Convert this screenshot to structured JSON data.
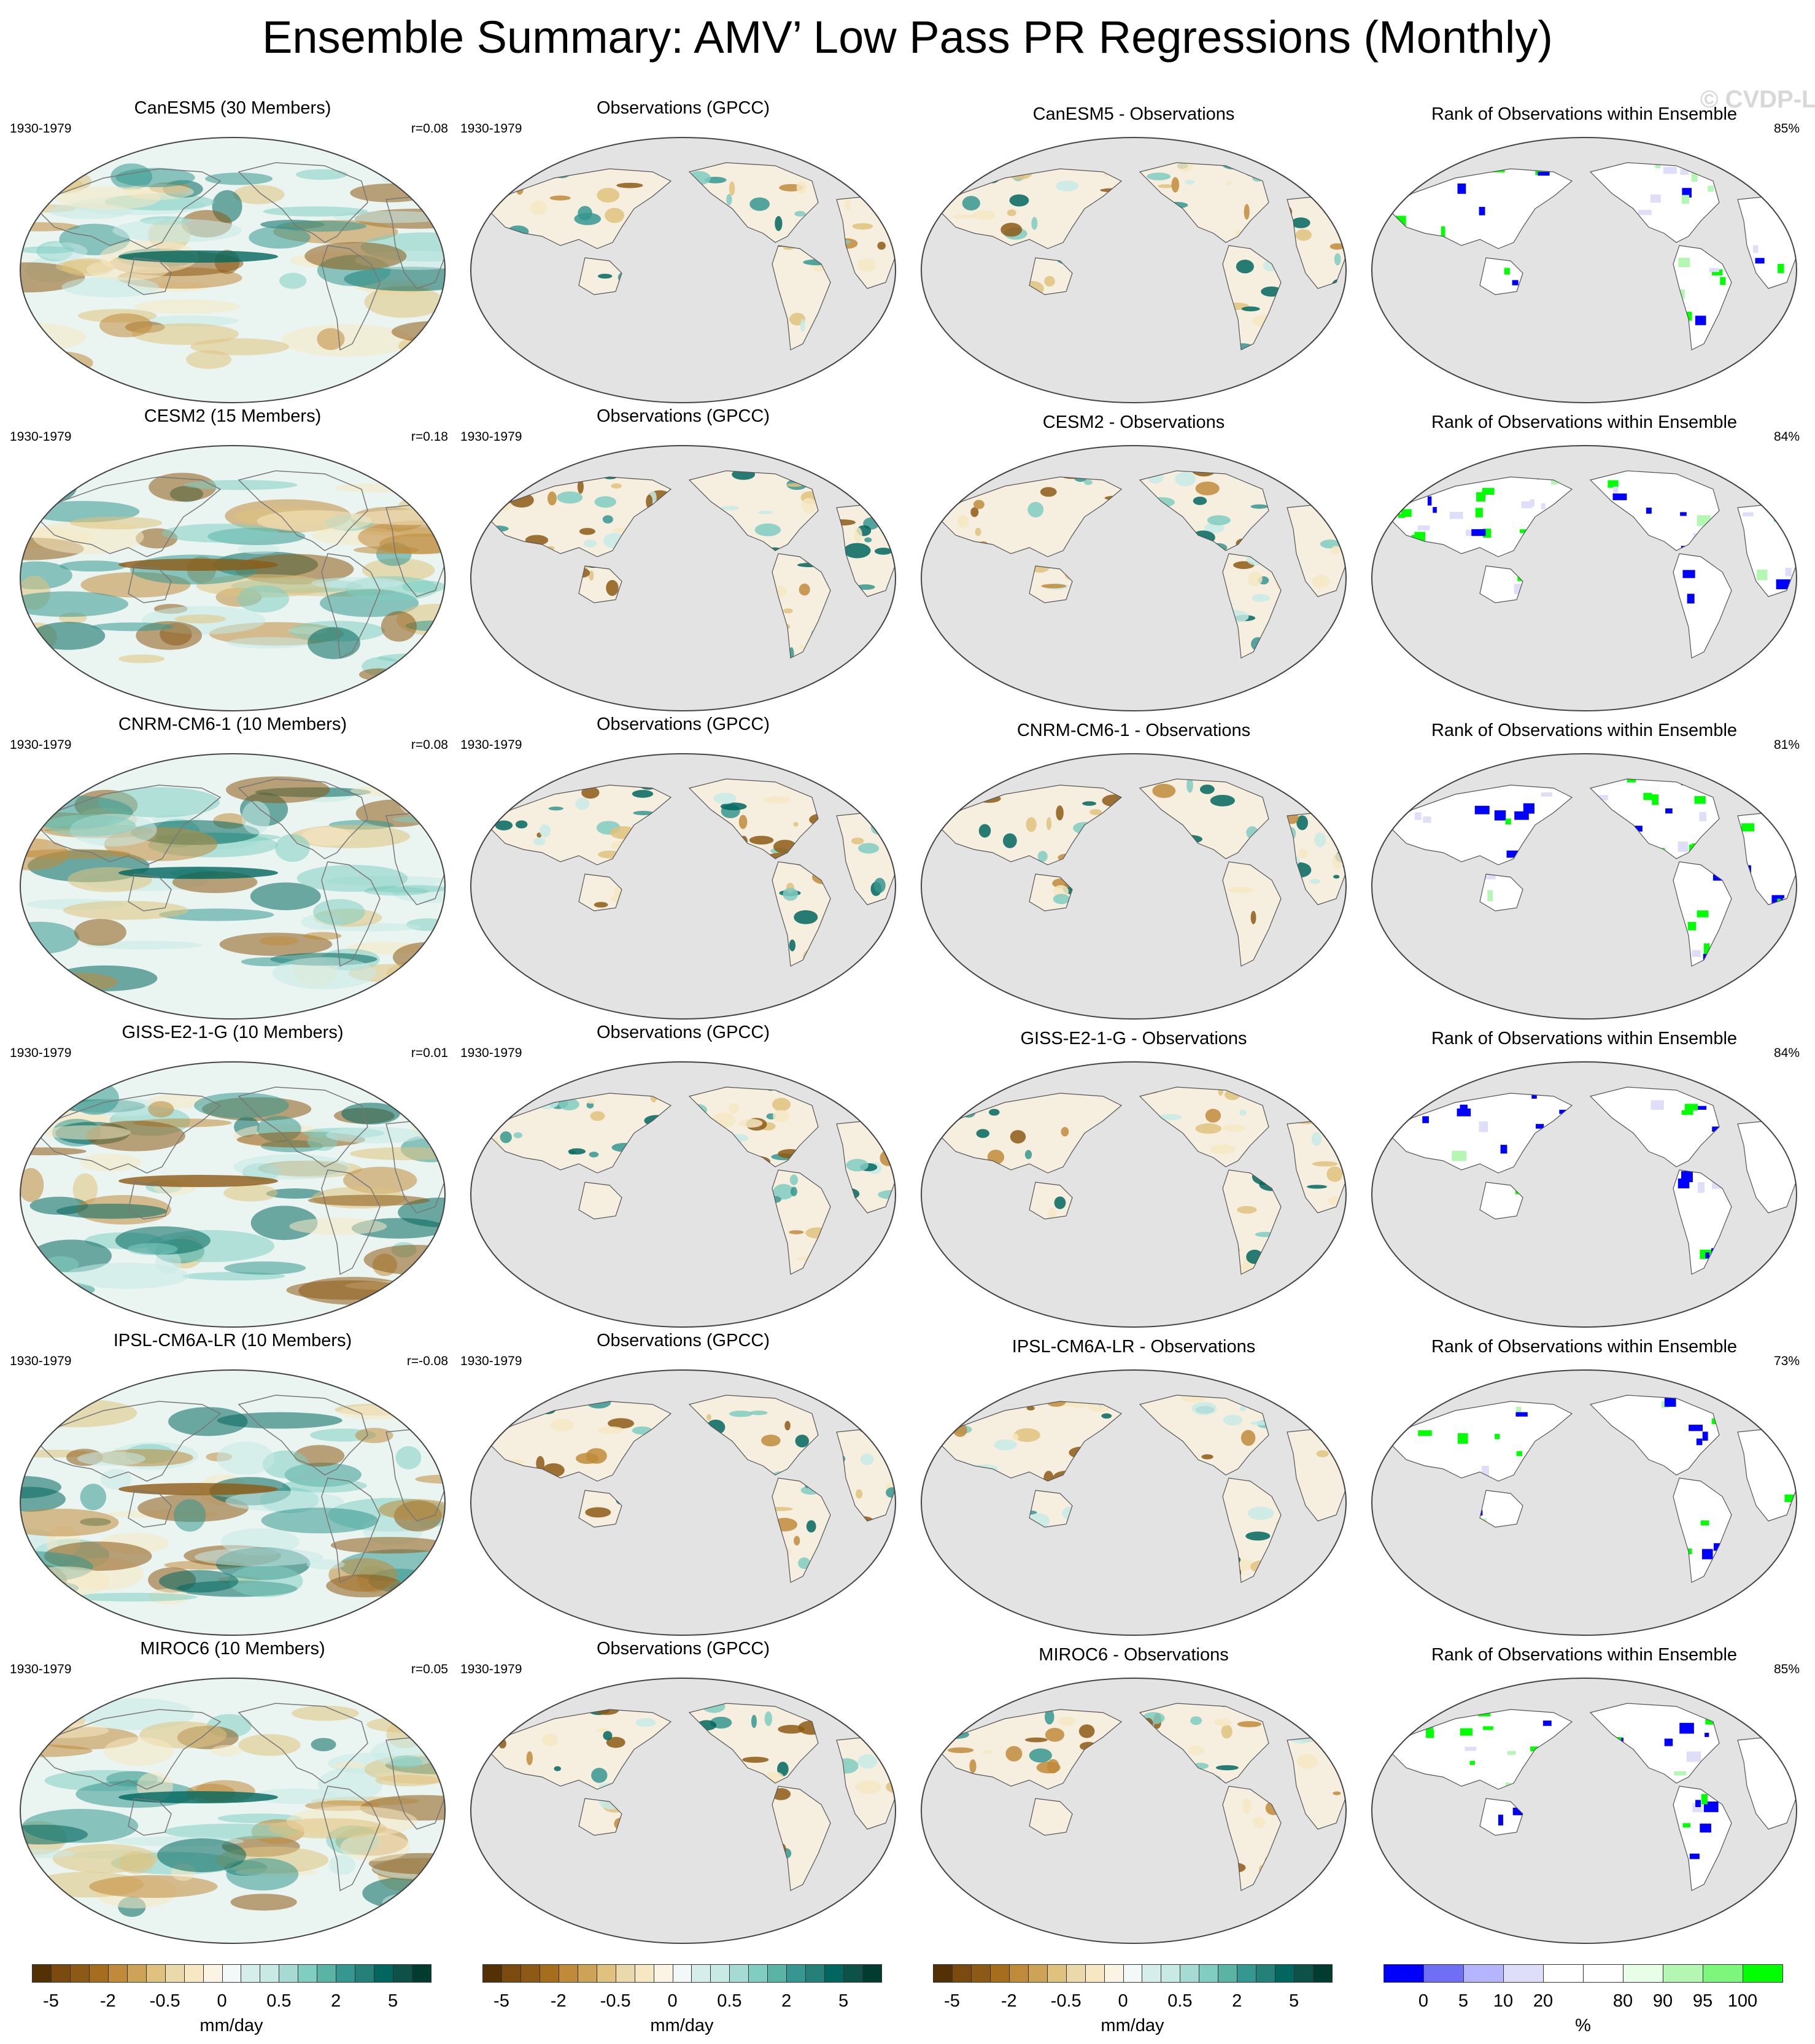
{
  "title": "Ensemble Summary: AMV’ Low Pass PR Regressions (Monthly)",
  "watermark": "© CVDP-LE",
  "column_titles": {
    "observations": "Observations (GPCC)",
    "rank": "Rank of Observations within Ensemble"
  },
  "rows": [
    {
      "model_title": "CanESM5 (30 Members)",
      "period": "1930-1979",
      "r_label": "r=0.08",
      "obs_period": "1930-1979",
      "diff_title": "CanESM5 - Observations",
      "rank_pct": "85%"
    },
    {
      "model_title": "CESM2 (15 Members)",
      "period": "1930-1979",
      "r_label": "r=0.18",
      "obs_period": "1930-1979",
      "diff_title": "CESM2 - Observations",
      "rank_pct": "84%"
    },
    {
      "model_title": "CNRM-CM6-1 (10 Members)",
      "period": "1930-1979",
      "r_label": "r=0.08",
      "obs_period": "1930-1979",
      "diff_title": "CNRM-CM6-1 - Observations",
      "rank_pct": "81%"
    },
    {
      "model_title": "GISS-E2-1-G (10 Members)",
      "period": "1930-1979",
      "r_label": "r=0.01",
      "obs_period": "1930-1979",
      "diff_title": "GISS-E2-1-G - Observations",
      "rank_pct": "84%"
    },
    {
      "model_title": "IPSL-CM6A-LR (10 Members)",
      "period": "1930-1979",
      "r_label": "r=-0.08",
      "obs_period": "1930-1979",
      "diff_title": "IPSL-CM6A-LR - Observations",
      "rank_pct": "73%"
    },
    {
      "model_title": "MIROC6 (10 Members)",
      "period": "1930-1979",
      "r_label": "r=0.05",
      "obs_period": "1930-1979",
      "diff_title": "MIROC6 - Observations",
      "rank_pct": "85%"
    }
  ],
  "colorbars": {
    "precip": {
      "unit": "mm/day",
      "colors": [
        "#543005",
        "#7a4a0e",
        "#8c5a14",
        "#a56e1e",
        "#bf8b3a",
        "#cca357",
        "#dfc27d",
        "#ead9ab",
        "#f6e8c3",
        "#fbf4e4",
        "#f2f9f8",
        "#d5eeeb",
        "#c7eae5",
        "#a5dbd3",
        "#80cdc1",
        "#5ab4a6",
        "#35978f",
        "#238177",
        "#01665e",
        "#0d5248",
        "#003c30"
      ],
      "labels": [
        "-5",
        "-2",
        "-0.5",
        "0",
        "0.5",
        "2",
        "5"
      ],
      "label_boundary_index": [
        1,
        4,
        7,
        10,
        13,
        16,
        19
      ]
    },
    "rank": {
      "unit": "%",
      "colors": [
        "#0000ff",
        "#6f6ff5",
        "#b4b4ff",
        "#dedef8",
        "#ffffff",
        "#ffffff",
        "#e6ffe6",
        "#b3f7b3",
        "#7cf77c",
        "#00ff00"
      ],
      "labels": [
        "0",
        "5",
        "10",
        "20",
        "80",
        "90",
        "95",
        "100"
      ],
      "label_boundary_index": [
        1,
        2,
        3,
        4,
        6,
        7,
        8,
        9
      ]
    }
  }
}
